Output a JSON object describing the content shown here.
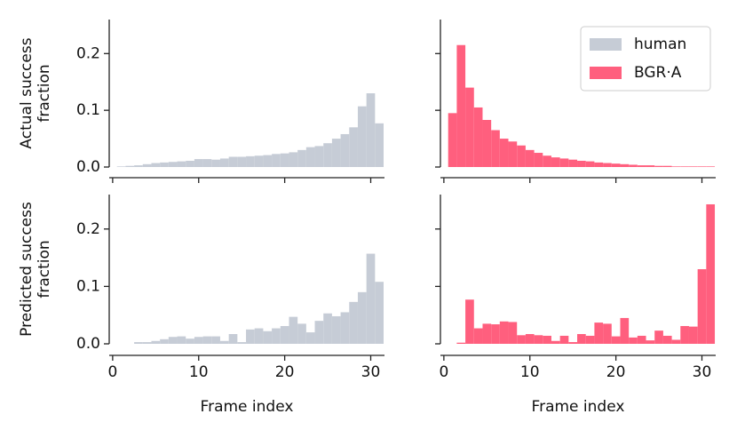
{
  "chart_data": [
    {
      "type": "histogram",
      "name": "human",
      "color": "#c6ccd6",
      "ylabel": [
        "Actual success",
        "fraction"
      ],
      "bins": [
        0.5,
        1.5,
        2.5,
        3.5,
        4.5,
        5.5,
        6.5,
        7.5,
        8.5,
        9.5,
        10.5,
        11.5,
        12.5,
        13.5,
        14.5,
        15.5,
        16.5,
        17.5,
        18.5,
        19.5,
        20.5,
        21.5,
        22.5,
        23.5,
        24.5,
        25.5,
        26.5,
        27.5,
        28.5,
        29.5,
        30.5,
        31.5
      ],
      "values": [
        0.001,
        0.002,
        0.003,
        0.005,
        0.007,
        0.008,
        0.009,
        0.01,
        0.011,
        0.014,
        0.014,
        0.013,
        0.015,
        0.018,
        0.018,
        0.019,
        0.02,
        0.021,
        0.023,
        0.024,
        0.026,
        0.03,
        0.035,
        0.037,
        0.042,
        0.05,
        0.058,
        0.07,
        0.107,
        0.13,
        0.077
      ],
      "xlim": [
        -0.4,
        31.6
      ],
      "xticks": [
        0,
        10,
        20,
        30
      ],
      "ylim": [
        0,
        0.26
      ],
      "yticks": [
        0.0,
        0.1,
        0.2
      ]
    },
    {
      "type": "histogram",
      "name": "BGR·A",
      "color": "#ff5f7e",
      "legend": "upper right",
      "bins": [
        0.5,
        1.5,
        2.5,
        3.5,
        4.5,
        5.5,
        6.5,
        7.5,
        8.5,
        9.5,
        10.5,
        11.5,
        12.5,
        13.5,
        14.5,
        15.5,
        16.5,
        17.5,
        18.5,
        19.5,
        20.5,
        21.5,
        22.5,
        23.5,
        24.5,
        25.5,
        26.5,
        27.5,
        28.5,
        29.5,
        30.5,
        31.5
      ],
      "values": [
        0.095,
        0.215,
        0.14,
        0.105,
        0.083,
        0.065,
        0.05,
        0.045,
        0.038,
        0.03,
        0.025,
        0.02,
        0.017,
        0.015,
        0.013,
        0.011,
        0.01,
        0.008,
        0.007,
        0.006,
        0.005,
        0.004,
        0.003,
        0.003,
        0.002,
        0.002,
        0.001,
        0.001,
        0.001,
        0.001,
        0.001
      ],
      "xlim": [
        -0.4,
        31.6
      ],
      "xticks": [
        0,
        10,
        20,
        30
      ],
      "ylim": [
        0,
        0.26
      ],
      "yticks": [
        0.0,
        0.1,
        0.2
      ]
    },
    {
      "type": "histogram",
      "color": "#c6ccd6",
      "ylabel": [
        "Predicted success",
        "fraction"
      ],
      "xlabel": "Frame index",
      "bins": [
        0.5,
        1.5,
        2.5,
        3.5,
        4.5,
        5.5,
        6.5,
        7.5,
        8.5,
        9.5,
        10.5,
        11.5,
        12.5,
        13.5,
        14.5,
        15.5,
        16.5,
        17.5,
        18.5,
        19.5,
        20.5,
        21.5,
        22.5,
        23.5,
        24.5,
        25.5,
        26.5,
        27.5,
        28.5,
        29.5,
        30.5,
        31.5
      ],
      "values": [
        0,
        0,
        0.003,
        0.003,
        0.005,
        0.008,
        0.012,
        0.013,
        0.009,
        0.012,
        0.013,
        0.013,
        0.005,
        0.017,
        0.003,
        0.025,
        0.027,
        0.022,
        0.027,
        0.031,
        0.047,
        0.035,
        0.02,
        0.04,
        0.053,
        0.048,
        0.055,
        0.073,
        0.09,
        0.157,
        0.108
      ],
      "xlim": [
        -0.4,
        31.6
      ],
      "xticks": [
        0,
        10,
        20,
        30
      ],
      "ylim": [
        0,
        0.26
      ],
      "yticks": [
        0.0,
        0.1,
        0.2
      ]
    },
    {
      "type": "histogram",
      "color": "#ff5f7e",
      "xlabel": "Frame index",
      "bins": [
        0.5,
        1.5,
        2.5,
        3.5,
        4.5,
        5.5,
        6.5,
        7.5,
        8.5,
        9.5,
        10.5,
        11.5,
        12.5,
        13.5,
        14.5,
        15.5,
        16.5,
        17.5,
        18.5,
        19.5,
        20.5,
        21.5,
        22.5,
        23.5,
        24.5,
        25.5,
        26.5,
        27.5,
        28.5,
        29.5,
        30.5,
        31.5
      ],
      "values": [
        0,
        0.002,
        0.077,
        0.027,
        0.035,
        0.034,
        0.039,
        0.038,
        0.015,
        0.017,
        0.015,
        0.014,
        0.005,
        0.014,
        0.003,
        0.017,
        0.014,
        0.037,
        0.035,
        0.013,
        0.045,
        0.011,
        0.014,
        0.006,
        0.023,
        0.014,
        0.007,
        0.031,
        0.03,
        0.13,
        0.243
      ],
      "xlim": [
        -0.4,
        31.6
      ],
      "xticks": [
        0,
        10,
        20,
        30
      ],
      "ylim": [
        0,
        0.26
      ],
      "yticks": [
        0.0,
        0.1,
        0.2
      ]
    }
  ]
}
